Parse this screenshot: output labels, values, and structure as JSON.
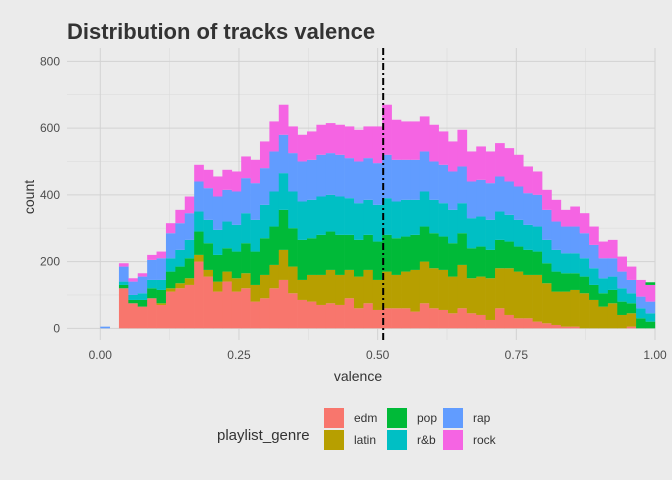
{
  "chart_data": {
    "type": "bar",
    "subtype": "stacked-histogram",
    "title": "Distribution of tracks valence",
    "xlabel": "valence",
    "ylabel": "count",
    "xlim": [
      -0.06,
      1.0
    ],
    "ylim": [
      -35,
      840
    ],
    "x_ticks": [
      0.0,
      0.25,
      0.5,
      0.75,
      1.0
    ],
    "x_tick_labels": [
      "0.00",
      "0.25",
      "0.50",
      "0.75",
      "1.00"
    ],
    "y_ticks": [
      0,
      200,
      400,
      600,
      800
    ],
    "y_tick_labels": [
      "0",
      "200",
      "400",
      "600",
      "800"
    ],
    "grid": true,
    "legend_title": "playlist_genre",
    "legend_position": "bottom",
    "reference_line": {
      "x": 0.51,
      "style": "dashdot",
      "color": "#000000"
    },
    "bin_width": 0.01695,
    "bin_starts": [
      0.0,
      0.03364,
      0.05059,
      0.06754,
      0.08449,
      0.10144,
      0.11839,
      0.13534,
      0.15229,
      0.16924,
      0.18619,
      0.20314,
      0.22009,
      0.23704,
      0.25399,
      0.27094,
      0.28789,
      0.30484,
      0.32179,
      0.33874,
      0.35569,
      0.37264,
      0.38959,
      0.40654,
      0.42349,
      0.44044,
      0.45739,
      0.47434,
      0.49129,
      0.50824,
      0.52519,
      0.54214,
      0.55909,
      0.57604,
      0.59299,
      0.60994,
      0.62689,
      0.64384,
      0.66079,
      0.67774,
      0.69469,
      0.71164,
      0.72859,
      0.74554,
      0.76249,
      0.77944,
      0.79639,
      0.81334,
      0.83029,
      0.84724,
      0.86419,
      0.88114,
      0.89809,
      0.91504,
      0.93199,
      0.94894,
      0.96589,
      0.98284
    ],
    "series": [
      {
        "name": "edm",
        "color": "#f8766d",
        "values": [
          0,
          120,
          75,
          65,
          90,
          70,
          110,
          120,
          130,
          200,
          155,
          110,
          140,
          110,
          120,
          80,
          90,
          120,
          145,
          105,
          85,
          80,
          70,
          75,
          70,
          90,
          60,
          75,
          55,
          60,
          60,
          60,
          50,
          75,
          60,
          55,
          45,
          60,
          45,
          40,
          25,
          60,
          40,
          30,
          30,
          20,
          15,
          10,
          5,
          5,
          0,
          0,
          0,
          0,
          0,
          5,
          0,
          0
        ]
      },
      {
        "name": "latin",
        "color": "#b79f00",
        "values": [
          0,
          0,
          0,
          0,
          0,
          5,
          10,
          15,
          20,
          20,
          20,
          30,
          30,
          40,
          45,
          50,
          70,
          70,
          90,
          80,
          60,
          80,
          90,
          100,
          90,
          85,
          95,
          100,
          90,
          110,
          100,
          110,
          125,
          125,
          120,
          120,
          110,
          130,
          105,
          115,
          125,
          120,
          140,
          140,
          130,
          140,
          120,
          100,
          105,
          110,
          105,
          85,
          65,
          75,
          40,
          40,
          0,
          0
        ]
      },
      {
        "name": "pop",
        "color": "#00ba38",
        "values": [
          0,
          10,
          10,
          20,
          30,
          40,
          50,
          50,
          60,
          70,
          80,
          80,
          70,
          80,
          90,
          100,
          110,
          115,
          120,
          115,
          120,
          110,
          120,
          115,
          120,
          105,
          110,
          105,
          115,
          110,
          110,
          105,
          105,
          105,
          105,
          100,
          100,
          95,
          90,
          90,
          85,
          85,
          80,
          75,
          75,
          70,
          60,
          60,
          55,
          50,
          50,
          45,
          40,
          40,
          40,
          30,
          30,
          20
        ]
      },
      {
        "name": "r&b",
        "color": "#00bfc4",
        "values": [
          0,
          10,
          15,
          20,
          25,
          30,
          40,
          50,
          55,
          60,
          70,
          75,
          80,
          80,
          90,
          95,
          100,
          105,
          110,
          110,
          115,
          115,
          115,
          110,
          115,
          110,
          110,
          105,
          110,
          110,
          110,
          110,
          105,
          105,
          100,
          100,
          100,
          90,
          90,
          90,
          90,
          85,
          80,
          80,
          75,
          75,
          70,
          65,
          60,
          60,
          55,
          50,
          45,
          40,
          40,
          30,
          30,
          25
        ]
      },
      {
        "name": "rap",
        "color": "#619cff",
        "values": [
          5,
          45,
          40,
          50,
          60,
          65,
          75,
          80,
          80,
          90,
          95,
          100,
          95,
          100,
          105,
          110,
          110,
          120,
          115,
          115,
          120,
          120,
          125,
          125,
          125,
          120,
          125,
          125,
          125,
          130,
          125,
          120,
          120,
          120,
          115,
          115,
          115,
          110,
          110,
          110,
          110,
          105,
          100,
          100,
          95,
          95,
          90,
          85,
          80,
          80,
          75,
          70,
          60,
          55,
          50,
          40,
          35,
          35
        ]
      },
      {
        "name": "rock",
        "color": "#f564e3",
        "values": [
          0,
          10,
          10,
          10,
          15,
          20,
          30,
          40,
          50,
          50,
          55,
          60,
          60,
          60,
          65,
          70,
          80,
          90,
          90,
          80,
          80,
          85,
          90,
          90,
          90,
          95,
          95,
          95,
          110,
          150,
          120,
          115,
          115,
          105,
          110,
          100,
          90,
          110,
          90,
          100,
          95,
          100,
          100,
          95,
          80,
          70,
          60,
          65,
          50,
          60,
          60,
          55,
          50,
          55,
          45,
          40,
          50,
          50
        ]
      },
      {
        "name": "pop",
        "color": "#00ba38",
        "values": [
          0,
          0,
          0,
          0,
          0,
          0,
          0,
          0,
          0,
          0,
          0,
          0,
          0,
          0,
          0,
          0,
          0,
          0,
          0,
          0,
          0,
          0,
          0,
          0,
          0,
          0,
          0,
          0,
          0,
          0,
          0,
          0,
          0,
          0,
          0,
          0,
          0,
          0,
          0,
          0,
          0,
          0,
          0,
          0,
          0,
          0,
          0,
          0,
          0,
          0,
          0,
          0,
          0,
          0,
          0,
          0,
          0,
          8
        ]
      }
    ]
  }
}
